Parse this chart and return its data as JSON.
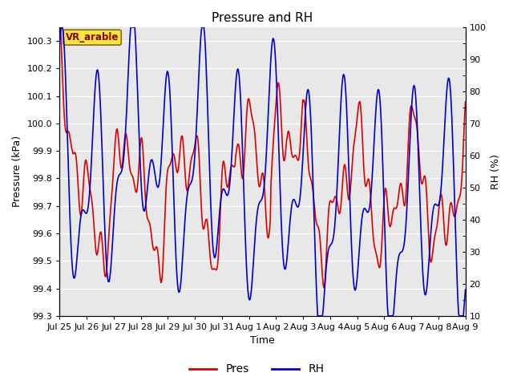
{
  "title": "Pressure and RH",
  "xlabel": "Time",
  "ylabel_left": "Pressure (kPa)",
  "ylabel_right": "RH (%)",
  "annotation": "VR_arable",
  "pres_ylim": [
    99.3,
    100.35
  ],
  "pres_yticks": [
    99.3,
    99.4,
    99.5,
    99.6,
    99.7,
    99.8,
    99.9,
    100.0,
    100.1,
    100.2,
    100.3
  ],
  "rh_ylim": [
    10,
    100
  ],
  "rh_yticks": [
    10,
    20,
    30,
    40,
    50,
    60,
    70,
    80,
    90,
    100
  ],
  "xtick_labels": [
    "Jul 25",
    "Jul 26",
    "Jul 27",
    "Jul 28",
    "Jul 29",
    "Jul 30",
    "Jul 31",
    "Aug 1",
    "Aug 2",
    "Aug 3",
    "Aug 4",
    "Aug 5",
    "Aug 6",
    "Aug 7",
    "Aug 8",
    "Aug 9"
  ],
  "line_pres_color": "#dd0000",
  "line_rh_color": "#0000cc",
  "bg_color": "#e8e8e8",
  "legend_pres": "Pres",
  "legend_rh": "RH",
  "title_fontsize": 11,
  "axis_fontsize": 9,
  "tick_fontsize": 8
}
